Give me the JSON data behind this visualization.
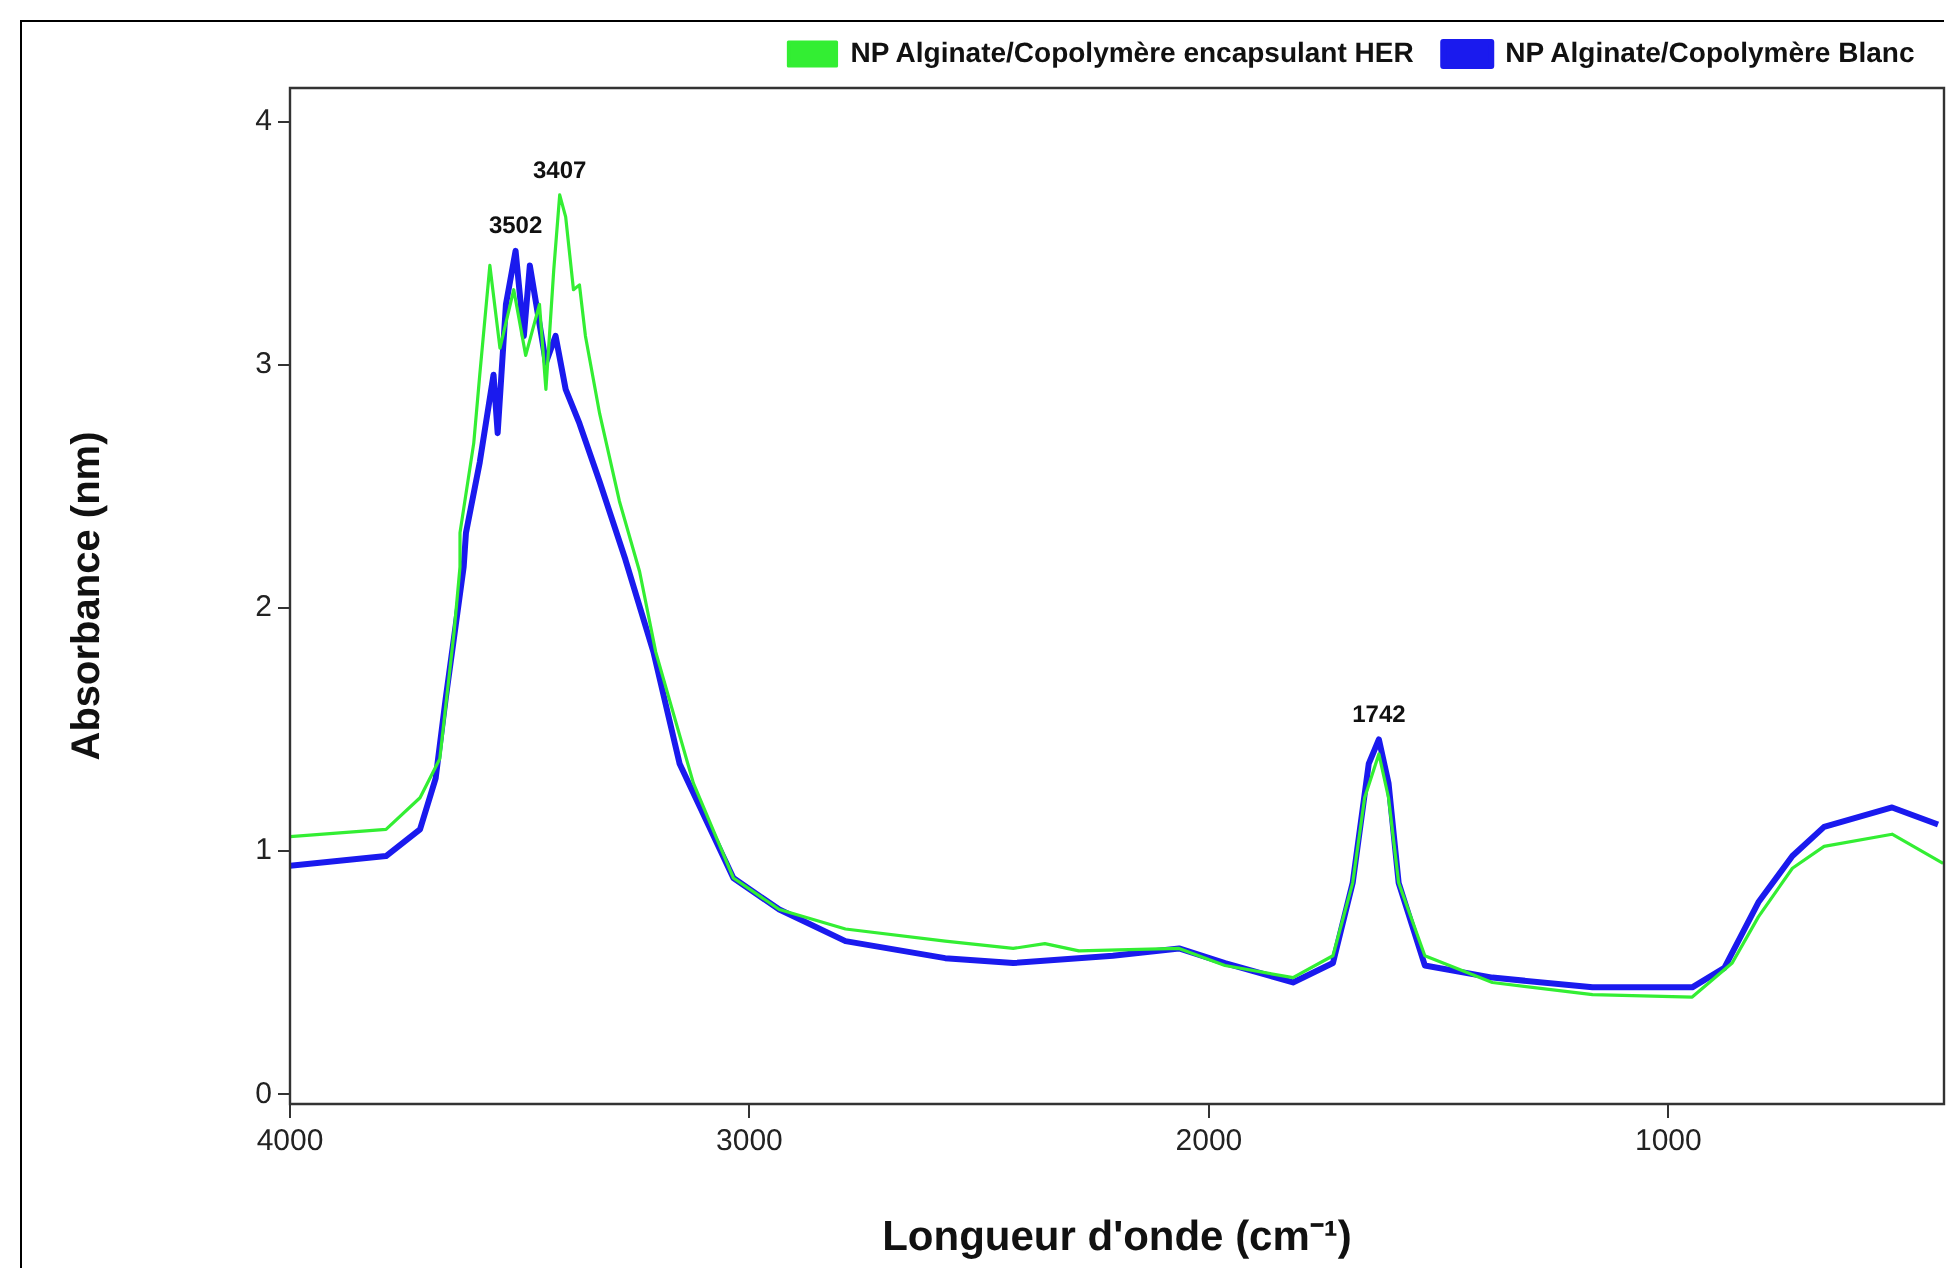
{
  "chart_data": {
    "type": "line",
    "xlabel": "Longueur d'onde (cm⁻¹)",
    "ylabel": "Absorbance (nm)",
    "xlim": [
      4000,
      400
    ],
    "xticks": [
      4000,
      3000,
      2000,
      1000
    ],
    "ylim": [
      -0.04,
      4.14
    ],
    "yticks": [
      0,
      1,
      2,
      3,
      4
    ],
    "grid": false,
    "legend": "top right",
    "marker": "none",
    "line_style": "solid",
    "annotations": [
      {
        "text": "3502",
        "x": 3509,
        "y": 3.47
      },
      {
        "text": "3407",
        "x": 3413,
        "y": 3.7
      },
      {
        "text": "1742",
        "x": 1630,
        "y": 1.46
      }
    ],
    "series": [
      {
        "name": "NP Alginate/Copolymère encapsulant HER",
        "color": "#33ee33",
        "x": [
          4000,
          3791,
          3717,
          3674,
          3643,
          3630,
          3630,
          3600,
          3587,
          3565,
          3543,
          3513,
          3487,
          3457,
          3443,
          3426,
          3413,
          3400,
          3383,
          3370,
          3357,
          3326,
          3283,
          3239,
          3204,
          3122,
          3035,
          2935,
          2791,
          2574,
          2426,
          2357,
          2283,
          2065,
          1965,
          1817,
          1730,
          1687,
          1661,
          1630,
          1609,
          1587,
          1530,
          1383,
          1165,
          948,
          861,
          804,
          730,
          661,
          513,
          402
        ],
        "values": [
          1.06,
          1.09,
          1.22,
          1.38,
          1.9,
          2.17,
          2.31,
          2.68,
          2.96,
          3.41,
          3.07,
          3.31,
          3.04,
          3.25,
          2.9,
          3.39,
          3.7,
          3.61,
          3.31,
          3.33,
          3.12,
          2.8,
          2.44,
          2.15,
          1.82,
          1.28,
          0.89,
          0.76,
          0.68,
          0.63,
          0.6,
          0.62,
          0.59,
          0.6,
          0.53,
          0.48,
          0.57,
          0.87,
          1.22,
          1.4,
          1.22,
          0.87,
          0.57,
          0.46,
          0.41,
          0.4,
          0.54,
          0.73,
          0.93,
          1.02,
          1.07,
          0.95
        ]
      },
      {
        "name": "NP Alginate/Copolymère Blanc",
        "color": "#1a1aee",
        "x": [
          4000,
          3791,
          3717,
          3683,
          3661,
          3622,
          3617,
          3587,
          3557,
          3548,
          3530,
          3509,
          3491,
          3478,
          3457,
          3443,
          3422,
          3400,
          3370,
          3326,
          3270,
          3209,
          3152,
          3035,
          2935,
          2791,
          2574,
          2426,
          2209,
          2065,
          1965,
          1817,
          1730,
          1687,
          1652,
          1630,
          1609,
          1587,
          1530,
          1383,
          1165,
          948,
          878,
          804,
          730,
          661,
          513,
          413
        ],
        "values": [
          0.94,
          0.98,
          1.09,
          1.3,
          1.63,
          2.17,
          2.31,
          2.6,
          2.96,
          2.72,
          3.25,
          3.47,
          3.12,
          3.41,
          3.17,
          3.01,
          3.12,
          2.9,
          2.76,
          2.52,
          2.2,
          1.82,
          1.36,
          0.89,
          0.76,
          0.63,
          0.56,
          0.54,
          0.57,
          0.6,
          0.54,
          0.46,
          0.54,
          0.87,
          1.36,
          1.46,
          1.28,
          0.87,
          0.53,
          0.48,
          0.44,
          0.44,
          0.52,
          0.79,
          0.98,
          1.1,
          1.18,
          1.11
        ]
      }
    ]
  }
}
